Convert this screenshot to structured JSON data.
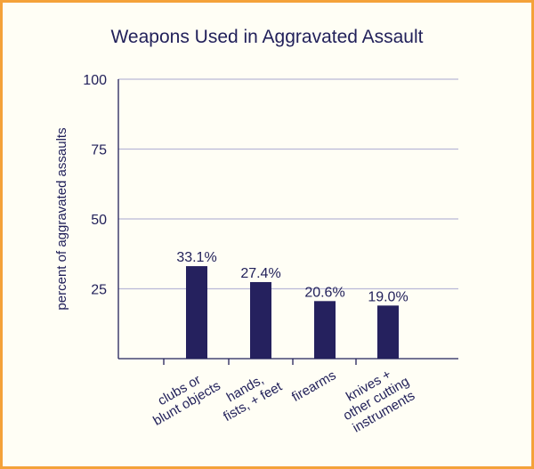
{
  "chart_data": {
    "type": "bar",
    "title": "Weapons Used in Aggravated Assault",
    "ylabel": "percent of aggravated assaults",
    "xlabel": "",
    "ylim": [
      0,
      100
    ],
    "yticks": [
      25,
      50,
      75,
      100
    ],
    "grid": true,
    "categories": [
      [
        "clubs or",
        "blunt objects"
      ],
      [
        "hands,",
        "fists, + feet"
      ],
      [
        "firearms"
      ],
      [
        "knives +",
        "other cutting",
        "instruments"
      ]
    ],
    "values": [
      33.1,
      27.4,
      20.6,
      19.0
    ],
    "data_labels": [
      "33.1%",
      "27.4%",
      "20.6%",
      "19.0%"
    ],
    "bar_color": "#25215e",
    "frame_color": "#f4a23a"
  }
}
